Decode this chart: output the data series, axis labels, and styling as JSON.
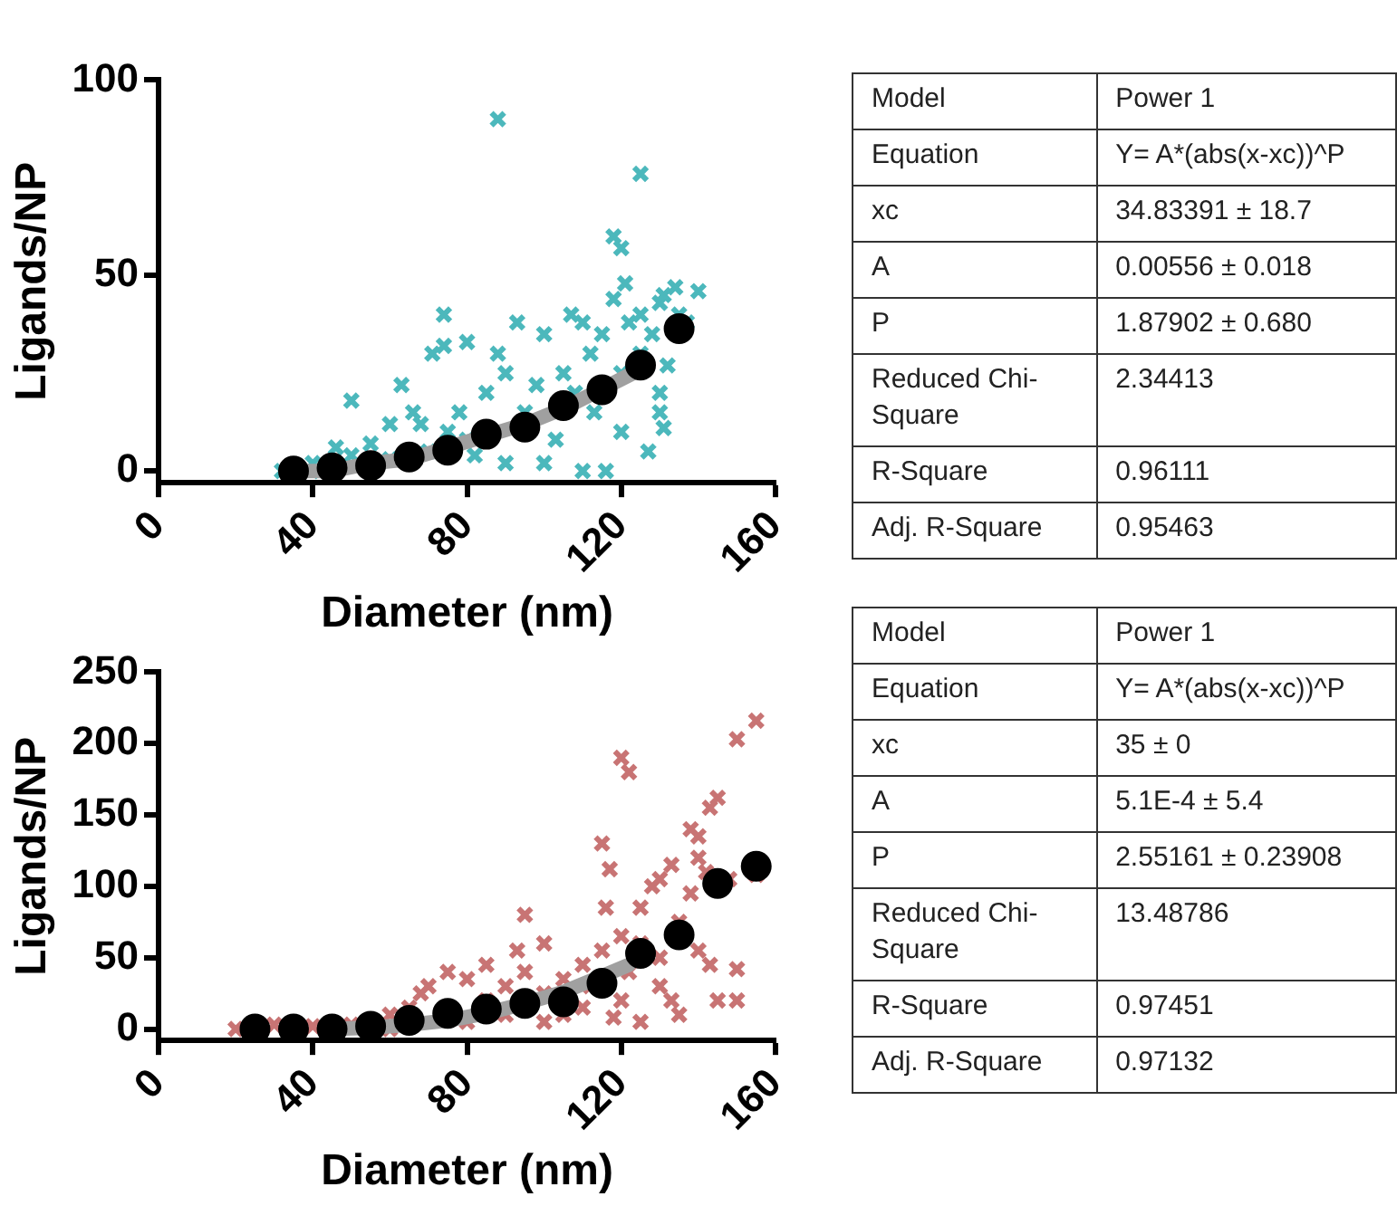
{
  "chart_data": [
    {
      "type": "scatter",
      "xlabel": "Diameter (nm)",
      "ylabel": "Ligands/NP",
      "xlim": [
        0,
        160
      ],
      "xticks": [
        0,
        40,
        80,
        120,
        160
      ],
      "ylim": [
        -3,
        100
      ],
      "yticks": [
        0,
        50,
        100
      ],
      "grid": false,
      "legend": false,
      "series": [
        {
          "type": "scatter",
          "marker": "cross",
          "color": "#4cb8bc",
          "x": [
            32,
            40,
            42,
            46,
            50,
            50,
            55,
            60,
            60,
            63,
            66,
            68,
            70,
            71,
            74,
            74,
            75,
            78,
            80,
            80,
            82,
            85,
            88,
            88,
            90,
            90,
            93,
            95,
            98,
            100,
            100,
            103,
            105,
            107,
            108,
            110,
            110,
            112,
            113,
            115,
            116,
            118,
            118,
            120,
            120,
            120,
            121,
            122,
            125,
            125,
            125,
            127,
            128,
            130,
            130,
            130,
            131,
            131,
            132,
            134,
            135,
            137,
            140
          ],
          "values": [
            0,
            2,
            0,
            6,
            4,
            18,
            7,
            12,
            3,
            22,
            15,
            12,
            5,
            30,
            40,
            32,
            10,
            15,
            33,
            8,
            4,
            20,
            30,
            90,
            2,
            25,
            38,
            15,
            22,
            2,
            35,
            8,
            25,
            40,
            20,
            0,
            38,
            30,
            15,
            35,
            0,
            44,
            60,
            57,
            10,
            25,
            48,
            38,
            76,
            40,
            30,
            5,
            35,
            43,
            20,
            15,
            45,
            11,
            27,
            47,
            40,
            38,
            46
          ]
        },
        {
          "type": "line",
          "marker": "none",
          "line_style": "solid",
          "color": "#a0a0a0",
          "x": [
            35,
            45,
            55,
            65,
            75,
            85,
            95,
            105,
            115,
            123
          ],
          "values": [
            0,
            0,
            2,
            3,
            6,
            9,
            12,
            16,
            21,
            25
          ]
        },
        {
          "type": "scatter",
          "marker": "circle",
          "color": "#000000",
          "x": [
            35,
            45,
            55,
            65,
            75,
            85,
            95,
            105,
            115,
            125,
            135
          ],
          "values": [
            0,
            0.8,
            1.4,
            3.6,
            5.3,
            9.4,
            11.2,
            16.7,
            20.8,
            27.1,
            36.4
          ]
        }
      ]
    },
    {
      "type": "other",
      "annotations": [
        "Model",
        "Power 1",
        "Equation",
        "Y= A*(abs(x-xc))^P",
        "xc",
        "34.83391 ± 18.7",
        "A",
        "0.00556 ± 0.018",
        "P",
        "1.87902 ± 0.680",
        "Reduced Chi-Square",
        "2.34413",
        "R-Square",
        "0.96111",
        "Adj. R-Square",
        "0.95463"
      ]
    },
    {
      "type": "scatter",
      "xlabel": "Diameter (nm)",
      "ylabel": "Ligands/NP",
      "xlim": [
        0,
        160
      ],
      "xticks": [
        0,
        40,
        80,
        120,
        160
      ],
      "ylim": [
        -8,
        250
      ],
      "yticks": [
        0,
        50,
        100,
        150,
        200,
        250
      ],
      "grid": false,
      "legend": false,
      "series": [
        {
          "type": "scatter",
          "marker": "cross",
          "color": "#c87474",
          "x": [
            20,
            30,
            40,
            50,
            60,
            60,
            65,
            68,
            70,
            75,
            80,
            80,
            85,
            85,
            90,
            90,
            93,
            95,
            95,
            100,
            100,
            100,
            105,
            105,
            110,
            110,
            112,
            115,
            115,
            116,
            117,
            118,
            120,
            120,
            120,
            122,
            122,
            125,
            125,
            125,
            128,
            130,
            130,
            130,
            133,
            133,
            135,
            135,
            138,
            138,
            140,
            140,
            140,
            142,
            143,
            143,
            145,
            145,
            148,
            150,
            150,
            150,
            155,
            155
          ],
          "values": [
            0,
            3,
            2,
            3,
            10,
            0,
            15,
            25,
            30,
            40,
            35,
            5,
            45,
            20,
            30,
            10,
            55,
            80,
            40,
            60,
            25,
            5,
            35,
            10,
            45,
            15,
            30,
            130,
            55,
            85,
            112,
            8,
            190,
            65,
            20,
            180,
            40,
            85,
            60,
            5,
            100,
            105,
            30,
            50,
            115,
            20,
            10,
            75,
            140,
            95,
            135,
            55,
            120,
            110,
            155,
            45,
            162,
            20,
            105,
            203,
            42,
            20,
            216,
            108
          ]
        },
        {
          "type": "line",
          "marker": "none",
          "line_style": "solid",
          "color": "#a0a0a0",
          "x": [
            45,
            55,
            65,
            75,
            85,
            95,
            105,
            115,
            122
          ],
          "values": [
            0,
            1,
            3,
            6,
            11,
            18,
            26,
            37,
            45
          ]
        },
        {
          "type": "scatter",
          "marker": "circle",
          "color": "#000000",
          "x": [
            25,
            35,
            45,
            55,
            65,
            75,
            85,
            95,
            105,
            115,
            125,
            135,
            145,
            155
          ],
          "values": [
            0,
            0,
            0,
            2,
            6,
            11,
            14,
            18,
            19,
            32,
            53,
            66,
            102,
            114
          ]
        }
      ]
    },
    {
      "type": "other",
      "annotations": [
        "Model",
        "Power 1",
        "Equation",
        "Y= A*(abs(x-xc))^P",
        "xc",
        "35 ± 0",
        "A",
        "5.1E-4 ± 5.4",
        "P",
        "2.55161 ± 0.23908",
        "Reduced Chi-Square",
        "13.48786",
        "R-Square",
        "0.97451",
        "Adj. R-Square",
        "0.97132"
      ]
    }
  ]
}
